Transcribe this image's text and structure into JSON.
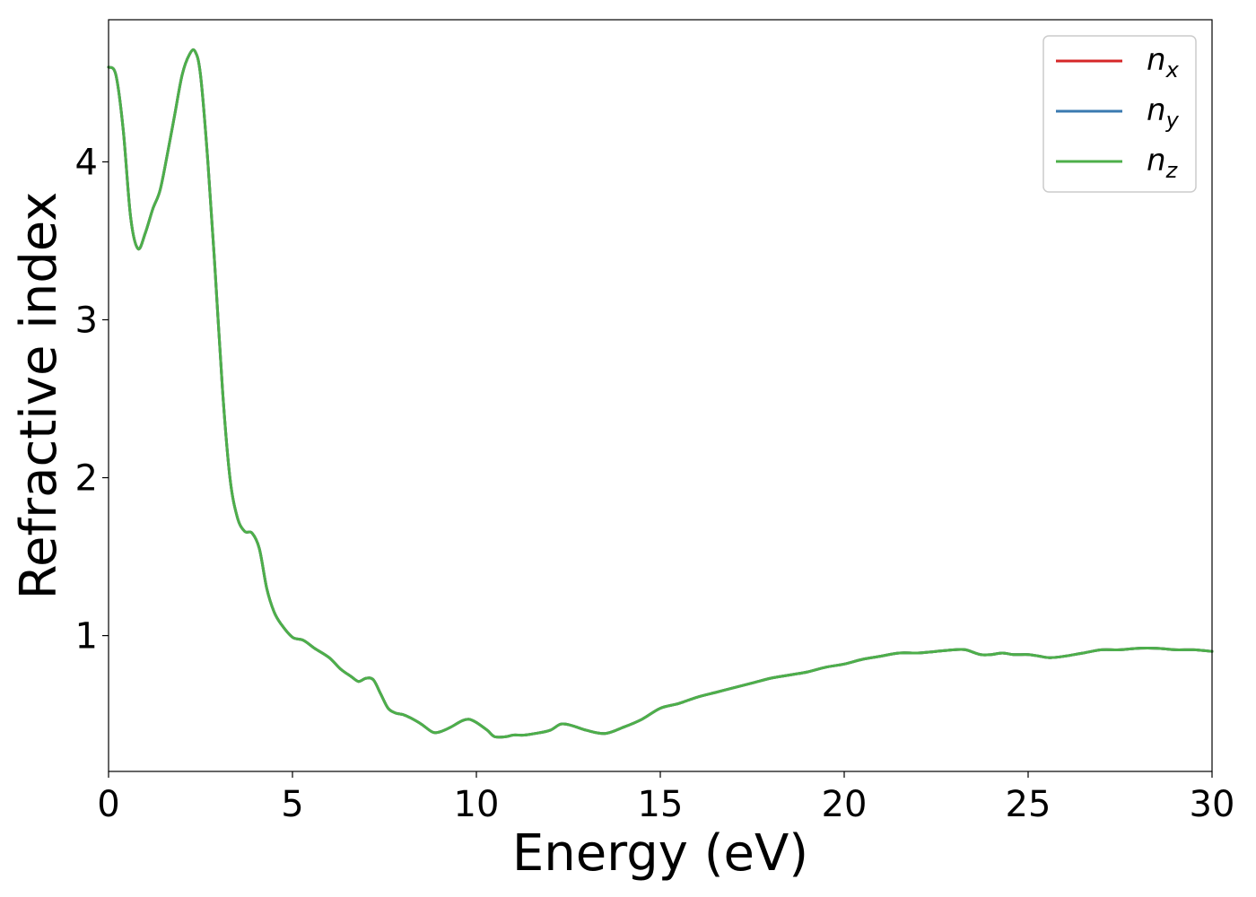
{
  "chart_data": {
    "type": "line",
    "title": "",
    "xlabel": "Energy (eV)",
    "ylabel": "Refractive index",
    "xlim": [
      0,
      30
    ],
    "ylim": [
      0.14,
      4.9
    ],
    "xticks": [
      0,
      5,
      10,
      15,
      20,
      25,
      30
    ],
    "yticks": [
      1,
      2,
      3,
      4
    ],
    "grid": false,
    "legend_placement": "top-right",
    "x": [
      0,
      0.2,
      0.4,
      0.6,
      0.8,
      1.0,
      1.2,
      1.4,
      1.6,
      1.8,
      2.0,
      2.2,
      2.35,
      2.5,
      2.7,
      2.9,
      3.1,
      3.3,
      3.5,
      3.7,
      3.9,
      4.1,
      4.3,
      4.5,
      4.7,
      5.0,
      5.3,
      5.6,
      6.0,
      6.3,
      6.6,
      6.8,
      7.0,
      7.2,
      7.4,
      7.6,
      7.8,
      8.0,
      8.2,
      8.5,
      8.8,
      9.0,
      9.3,
      9.6,
      9.8,
      10.0,
      10.3,
      10.5,
      10.8,
      11.0,
      11.3,
      11.6,
      12.0,
      12.3,
      12.6,
      13.0,
      13.5,
      14.0,
      14.5,
      15.0,
      15.5,
      16.0,
      16.5,
      17.0,
      17.5,
      18.0,
      18.5,
      19.0,
      19.5,
      20.0,
      20.5,
      21.0,
      21.5,
      22.0,
      22.5,
      23.0,
      23.3,
      23.7,
      24.0,
      24.3,
      24.6,
      25.0,
      25.3,
      25.6,
      26.0,
      26.5,
      27.0,
      27.5,
      28.0,
      28.5,
      29.0,
      29.5,
      30.0
    ],
    "series": [
      {
        "name": "n_x",
        "label": "n",
        "sub": "x",
        "color": "#d62728",
        "values": [
          4.6,
          4.55,
          4.2,
          3.65,
          3.45,
          3.55,
          3.7,
          3.82,
          4.05,
          4.3,
          4.55,
          4.68,
          4.7,
          4.55,
          4.0,
          3.3,
          2.55,
          2.0,
          1.75,
          1.66,
          1.65,
          1.55,
          1.3,
          1.15,
          1.07,
          0.99,
          0.97,
          0.92,
          0.86,
          0.79,
          0.74,
          0.71,
          0.73,
          0.72,
          0.63,
          0.54,
          0.51,
          0.5,
          0.48,
          0.44,
          0.39,
          0.39,
          0.42,
          0.46,
          0.47,
          0.45,
          0.4,
          0.36,
          0.36,
          0.37,
          0.37,
          0.38,
          0.4,
          0.44,
          0.43,
          0.4,
          0.38,
          0.42,
          0.47,
          0.54,
          0.57,
          0.61,
          0.64,
          0.67,
          0.7,
          0.73,
          0.75,
          0.77,
          0.8,
          0.82,
          0.85,
          0.87,
          0.89,
          0.89,
          0.9,
          0.91,
          0.91,
          0.88,
          0.88,
          0.89,
          0.88,
          0.88,
          0.87,
          0.86,
          0.87,
          0.89,
          0.91,
          0.91,
          0.92,
          0.92,
          0.91,
          0.91,
          0.9
        ]
      },
      {
        "name": "n_y",
        "label": "n",
        "sub": "y",
        "color": "#3a7ab0",
        "values": [
          4.6,
          4.55,
          4.2,
          3.65,
          3.45,
          3.55,
          3.7,
          3.82,
          4.05,
          4.3,
          4.55,
          4.68,
          4.7,
          4.55,
          4.0,
          3.3,
          2.55,
          2.0,
          1.75,
          1.66,
          1.65,
          1.55,
          1.3,
          1.15,
          1.07,
          0.99,
          0.97,
          0.92,
          0.86,
          0.79,
          0.74,
          0.71,
          0.73,
          0.72,
          0.63,
          0.54,
          0.51,
          0.5,
          0.48,
          0.44,
          0.39,
          0.39,
          0.42,
          0.46,
          0.47,
          0.45,
          0.4,
          0.36,
          0.36,
          0.37,
          0.37,
          0.38,
          0.4,
          0.44,
          0.43,
          0.4,
          0.38,
          0.42,
          0.47,
          0.54,
          0.57,
          0.61,
          0.64,
          0.67,
          0.7,
          0.73,
          0.75,
          0.77,
          0.8,
          0.82,
          0.85,
          0.87,
          0.89,
          0.89,
          0.9,
          0.91,
          0.91,
          0.88,
          0.88,
          0.89,
          0.88,
          0.88,
          0.87,
          0.86,
          0.87,
          0.89,
          0.91,
          0.91,
          0.92,
          0.92,
          0.91,
          0.91,
          0.9
        ]
      },
      {
        "name": "n_z",
        "label": "n",
        "sub": "z",
        "color": "#4daf4a",
        "values": [
          4.6,
          4.55,
          4.2,
          3.65,
          3.45,
          3.55,
          3.7,
          3.82,
          4.05,
          4.3,
          4.55,
          4.68,
          4.7,
          4.55,
          4.0,
          3.3,
          2.55,
          2.0,
          1.75,
          1.66,
          1.65,
          1.55,
          1.3,
          1.15,
          1.07,
          0.99,
          0.97,
          0.92,
          0.86,
          0.79,
          0.74,
          0.71,
          0.73,
          0.72,
          0.63,
          0.54,
          0.51,
          0.5,
          0.48,
          0.44,
          0.39,
          0.39,
          0.42,
          0.46,
          0.47,
          0.45,
          0.4,
          0.36,
          0.36,
          0.37,
          0.37,
          0.38,
          0.4,
          0.44,
          0.43,
          0.4,
          0.38,
          0.42,
          0.47,
          0.54,
          0.57,
          0.61,
          0.64,
          0.67,
          0.7,
          0.73,
          0.75,
          0.77,
          0.8,
          0.82,
          0.85,
          0.87,
          0.89,
          0.89,
          0.9,
          0.91,
          0.91,
          0.88,
          0.88,
          0.89,
          0.88,
          0.88,
          0.87,
          0.86,
          0.87,
          0.89,
          0.91,
          0.91,
          0.92,
          0.92,
          0.91,
          0.91,
          0.9
        ]
      }
    ]
  }
}
